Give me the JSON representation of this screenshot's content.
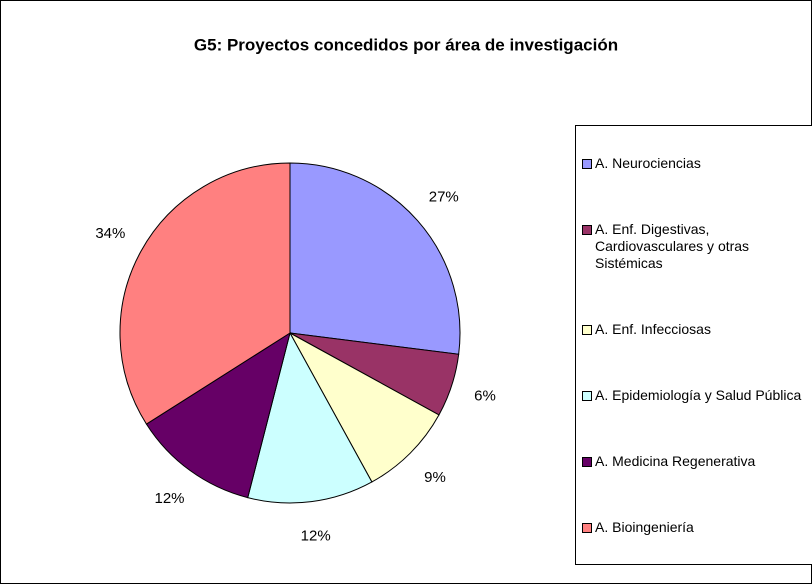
{
  "chart_data": {
    "type": "pie",
    "title": "G5: Proyectos concedidos por área de investigación",
    "categories": [
      "A. Neurociencias",
      "A. Enf. Digestivas, Cardiovasculares y otras Sistémicas",
      "A. Enf. Infecciosas",
      "A. Epidemiología y Salud Pública",
      "A. Medicina Regenerativa",
      "A. Bioingeniería"
    ],
    "values": [
      27,
      6,
      9,
      12,
      12,
      34
    ],
    "value_labels": [
      "27%",
      "6%",
      "9%",
      "12%",
      "12%",
      "34%"
    ],
    "colors": [
      "#9999ff",
      "#993366",
      "#ffffcc",
      "#ccffff",
      "#660066",
      "#ff8080"
    ],
    "legend": "right"
  }
}
